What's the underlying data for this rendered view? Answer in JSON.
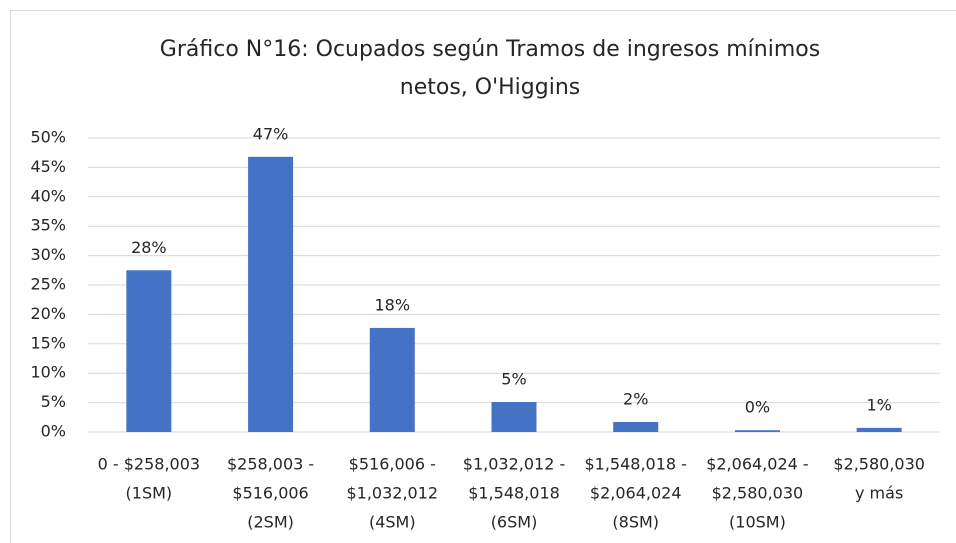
{
  "chart_data": {
    "type": "bar",
    "title": [
      "Gráfico N°16: Ocupados según Tramos de ingresos mínimos",
      "netos, O'Higgins"
    ],
    "categories": [
      [
        "0 - $258,003",
        "(1SM)"
      ],
      [
        "$258,003 -",
        "$516,006",
        "(2SM)"
      ],
      [
        "$516,006 -",
        "$1,032,012",
        "(4SM)"
      ],
      [
        "$1,032,012 -",
        "$1,548,018",
        "(6SM)"
      ],
      [
        "$1,548,018 -",
        "$2,064,024",
        "(8SM)"
      ],
      [
        "$2,064,024 -",
        "$2,580,030",
        "(10SM)"
      ],
      [
        "$2,580,030",
        "y más"
      ]
    ],
    "values": [
      27.5,
      46.8,
      17.7,
      5.1,
      1.7,
      0.3,
      0.7
    ],
    "value_labels": [
      "28%",
      "47%",
      "18%",
      "5%",
      "2%",
      "0%",
      "1%"
    ],
    "color": "#4472c4",
    "ylim": [
      0,
      50
    ],
    "yticks": [
      {
        "value": 0,
        "label": "0%"
      },
      {
        "value": 5,
        "label": "5%"
      },
      {
        "value": 10,
        "label": "10%"
      },
      {
        "value": 15,
        "label": "15%"
      },
      {
        "value": 20,
        "label": "20%"
      },
      {
        "value": 25,
        "label": "25%"
      },
      {
        "value": 30,
        "label": "30%"
      },
      {
        "value": 35,
        "label": "35%"
      },
      {
        "value": 40,
        "label": "40%"
      },
      {
        "value": 45,
        "label": "45%"
      },
      {
        "value": 50,
        "label": "50%"
      }
    ],
    "grid": true
  }
}
